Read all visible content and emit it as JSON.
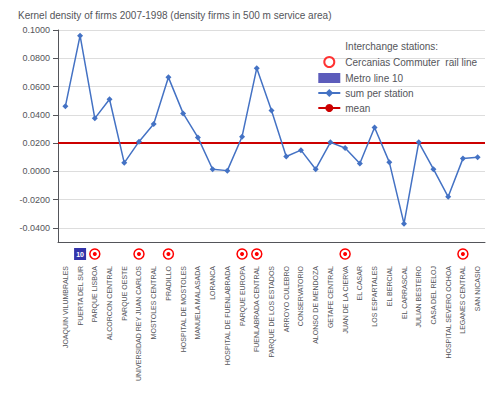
{
  "chart_data": {
    "type": "line",
    "categories": [
      "JOAQUIN VILUMBRALES",
      "PUERTA DEL SUR",
      "PARQUE LISBOA",
      "ALCORCON CENTRAL",
      "PARQUE OESTE",
      "UNIVERSIDAD REY JUAN CARLOS",
      "MOSTOLES CENTRAL",
      "PRADILLO",
      "HOSPITAL DE MOSTOLES",
      "MANUELA MALASADA",
      "LORANCA",
      "HOSPITAL DE FUENLABRADA",
      "PARQUE EUROPA",
      "FUENLABRADA CENTRAL",
      "PARQUE DE LOS ESTADOS",
      "ARROYO CULEBRO",
      "CONSERVATORIO",
      "ALONSO DE MENDOZA",
      "GETAFE CENTRAL",
      "JUAN DE LA CIERVA",
      "EL CASAR",
      "LOS ESPARTALES",
      "EL BERCIAL",
      "EL CARRASCAL",
      "JULIAN BESTEIRO",
      "CASA DEL RELOJ",
      "HOSPITAL SEVERO OCHOA",
      "LEGANES CENTRAL",
      "SAN NICASIO"
    ],
    "series": [
      {
        "name": "sum per station",
        "color": "#4472C4",
        "marker": "diamond",
        "values": [
          0.046,
          0.096,
          0.0375,
          0.051,
          0.006,
          0.021,
          0.0335,
          0.0665,
          0.041,
          0.024,
          0.0015,
          0.0005,
          0.0245,
          0.073,
          0.043,
          0.0105,
          0.015,
          0.0015,
          0.0205,
          0.0165,
          0.0055,
          0.031,
          0.0065,
          -0.037,
          0.0205,
          0.0015,
          -0.018,
          0.009,
          0.01
        ]
      },
      {
        "name": "mean",
        "type": "hline",
        "color": "#CC0000",
        "value": 0.0228
      }
    ],
    "interchange_title": "Interchange stations:",
    "interchanges": [
      {
        "name": "Cercanias Commuter  rail line",
        "color": "red",
        "marker": "circle",
        "stations": [
          "PARQUE LISBOA",
          "UNIVERSIDAD REY JUAN CARLOS",
          "PRADILLO",
          "PARQUE EUROPA",
          "FUENLABRADA CENTRAL",
          "JUAN DE LA CIERVA",
          "LEGANES CENTRAL"
        ]
      },
      {
        "name": "Metro line 10",
        "color": "#3333AA",
        "marker": "square",
        "label": "10",
        "stations": [
          "PUERTA DEL SUR"
        ]
      }
    ],
    "ylabel": "Kernel density of firms 2007-1998 (density firms in 500 m service area)",
    "ylim": [
      -0.05,
      0.1
    ],
    "yticks": [
      {
        "value": -0.04,
        "label": "-0.0400"
      },
      {
        "value": -0.02,
        "label": "-0.0200"
      },
      {
        "value": 0.0,
        "label": "0.0000"
      },
      {
        "value": 0.02,
        "label": "0.0200"
      },
      {
        "value": 0.04,
        "label": "0.0400"
      },
      {
        "value": 0.06,
        "label": "0.0600"
      },
      {
        "value": 0.08,
        "label": "0.0800"
      },
      {
        "value": 0.1,
        "label": "0.1000"
      }
    ],
    "grid": true,
    "legend": "upper right"
  }
}
